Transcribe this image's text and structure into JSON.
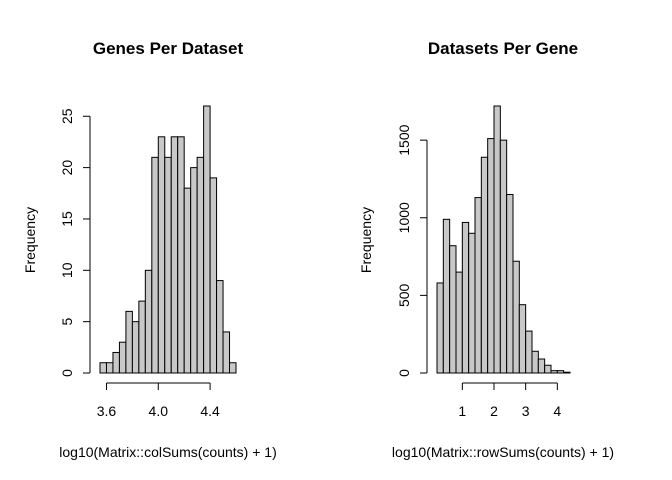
{
  "chart_data": [
    {
      "type": "bar",
      "title": "Genes Per Dataset",
      "xlabel": "log10(Matrix::colSums(counts) + 1)",
      "ylabel": "Frequency",
      "xlim": [
        3.55,
        4.6
      ],
      "ylim": [
        0,
        26
      ],
      "bin_width": 0.05,
      "bins_start": [
        3.55,
        3.6,
        3.65,
        3.7,
        3.75,
        3.8,
        3.85,
        3.9,
        3.95,
        4.0,
        4.05,
        4.1,
        4.15,
        4.2,
        4.25,
        4.3,
        4.35,
        4.4,
        4.45,
        4.5,
        4.55
      ],
      "values": [
        1,
        1,
        2,
        3,
        6,
        5,
        7,
        10,
        21,
        23,
        21,
        23,
        23,
        18,
        20,
        21,
        26,
        19,
        9,
        4,
        1
      ],
      "xticks": [
        3.6,
        4.0,
        4.4
      ],
      "xtick_labels": [
        "3.6",
        "4.0",
        "4.4"
      ],
      "yticks": [
        0,
        5,
        10,
        15,
        20,
        25
      ],
      "ytick_labels": [
        "0",
        "5",
        "10",
        "15",
        "20",
        "25"
      ],
      "bar_color": "#c8c8c8"
    },
    {
      "type": "bar",
      "title": "Datasets Per Gene",
      "xlabel": "log10(Matrix::rowSums(counts) + 1)",
      "ylabel": "Frequency",
      "xlim": [
        0.2,
        4.4
      ],
      "ylim": [
        0,
        1720
      ],
      "bin_width": 0.2,
      "bins_start": [
        0.2,
        0.4,
        0.6,
        0.8,
        1.0,
        1.2,
        1.4,
        1.6,
        1.8,
        2.0,
        2.2,
        2.4,
        2.6,
        2.8,
        3.0,
        3.2,
        3.4,
        3.6,
        3.8,
        4.0,
        4.2
      ],
      "values": [
        580,
        990,
        820,
        650,
        970,
        900,
        1130,
        1390,
        1510,
        1720,
        1500,
        1150,
        720,
        440,
        270,
        140,
        90,
        50,
        15,
        15,
        5
      ],
      "xticks": [
        1,
        2,
        3,
        4
      ],
      "xtick_labels": [
        "1",
        "2",
        "3",
        "4"
      ],
      "yticks": [
        0,
        500,
        1000,
        1500
      ],
      "ytick_labels": [
        "0",
        "500",
        "1000",
        "1500"
      ],
      "bar_color": "#c8c8c8"
    }
  ]
}
